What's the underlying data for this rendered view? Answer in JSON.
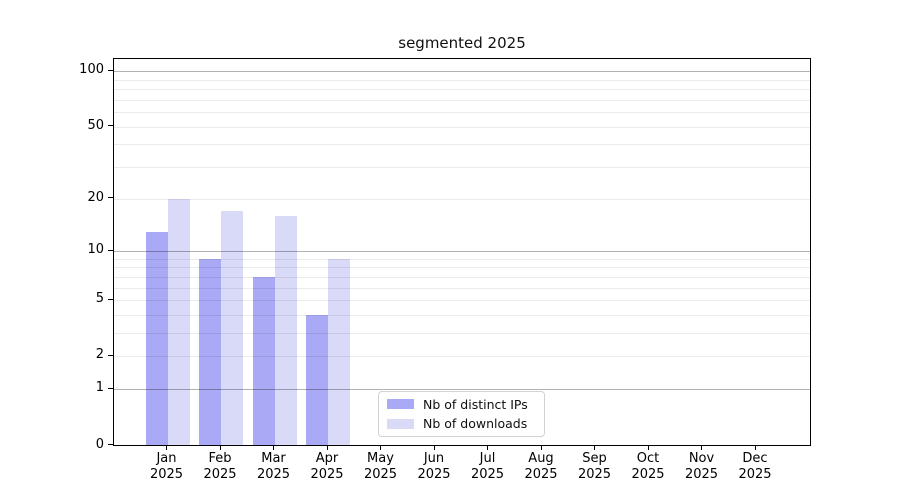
{
  "chart_data": {
    "type": "bar",
    "title": "segmented 2025",
    "categories": [
      "Jan",
      "Feb",
      "Mar",
      "Apr",
      "May",
      "Jun",
      "Jul",
      "Aug",
      "Sep",
      "Oct",
      "Nov",
      "Dec"
    ],
    "x_year_label": "2025",
    "series": [
      {
        "name": "Nb of distinct IPs",
        "color": "#a9a9f5",
        "values": [
          13,
          9,
          7,
          4,
          0,
          0,
          0,
          0,
          0,
          0,
          0,
          0
        ]
      },
      {
        "name": "Nb of downloads",
        "color": "#d9d9f8",
        "values": [
          20,
          17,
          16,
          9,
          0,
          0,
          0,
          0,
          0,
          0,
          0,
          0
        ]
      }
    ],
    "yscale": "log(1+v)",
    "ylim": [
      0,
      115
    ],
    "ytick_values": [
      0,
      1,
      2,
      5,
      10,
      20,
      50,
      100
    ],
    "ytick_labels": [
      "0",
      "1",
      "2",
      "5",
      "10",
      "20",
      "50",
      "100"
    ],
    "minor_gridline_values": [
      2,
      3,
      4,
      5,
      6,
      7,
      8,
      9,
      20,
      30,
      40,
      50,
      60,
      70,
      80,
      90
    ],
    "major_gridline_values": [
      1,
      10,
      100
    ],
    "grid": true,
    "legend_position": "lower center"
  }
}
